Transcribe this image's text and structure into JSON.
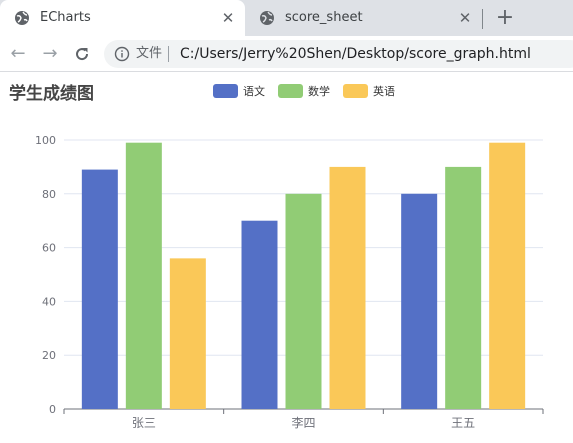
{
  "browser": {
    "tabs": [
      {
        "title": "ECharts",
        "active": true
      },
      {
        "title": "score_sheet",
        "active": false
      }
    ],
    "address": {
      "chip": "文件",
      "url": "C:/Users/Jerry%20Shen/Desktop/score_graph.html"
    }
  },
  "chart_data": {
    "type": "bar",
    "title": "学生成绩图",
    "categories": [
      "张三",
      "李四",
      "王五"
    ],
    "series": [
      {
        "name": "语文",
        "color": "#5470c6",
        "values": [
          89,
          70,
          80
        ]
      },
      {
        "name": "数学",
        "color": "#91cc75",
        "values": [
          99,
          80,
          90
        ]
      },
      {
        "name": "英语",
        "color": "#fac858",
        "values": [
          56,
          90,
          99
        ]
      }
    ],
    "ylim": [
      0,
      100
    ],
    "yticks": [
      0,
      20,
      40,
      60,
      80,
      100
    ],
    "grid": true,
    "legend_position": "top-center"
  }
}
